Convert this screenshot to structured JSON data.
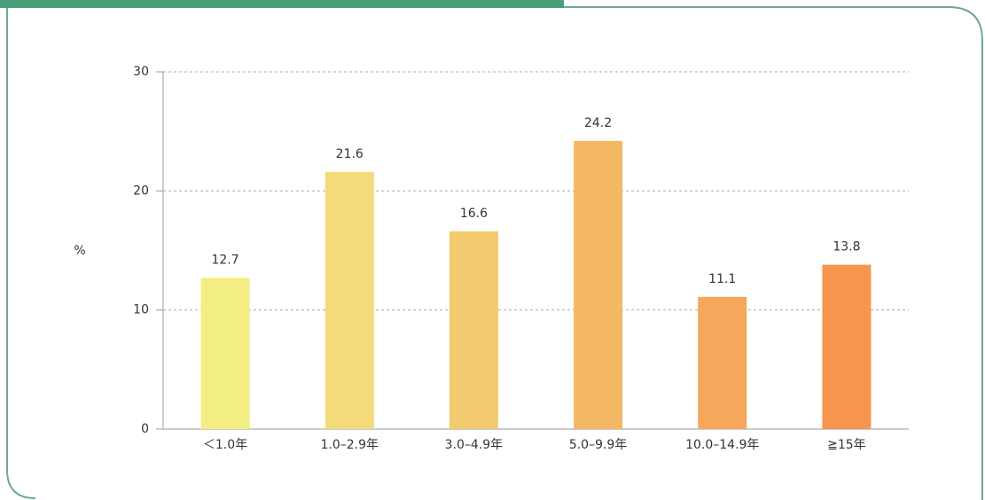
{
  "chart_data": {
    "type": "bar",
    "y_label": "%",
    "categories": [
      "＜1.0年",
      "1.0–2.9年",
      "3.0–4.9年",
      "5.0–9.9年",
      "10.0–14.9年",
      "≧15年"
    ],
    "values": [
      12.7,
      21.6,
      16.6,
      24.2,
      11.1,
      13.8
    ],
    "colors": [
      "#f3ee84",
      "#f4db79",
      "#f4ca6f",
      "#f5b864",
      "#f6a75b",
      "#f6954e"
    ],
    "ylim": [
      0,
      30
    ],
    "yticks": [
      0,
      10,
      20,
      30
    ],
    "grid": true
  }
}
